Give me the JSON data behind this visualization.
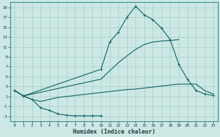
{
  "xlabel": "Humidex (Indice chaleur)",
  "background_color": "#cce8e4",
  "grid_color": "#aacfcb",
  "line_color": "#1a6b6b",
  "xlim": [
    -0.5,
    23.5
  ],
  "ylim": [
    -4,
    20
  ],
  "xticks": [
    0,
    1,
    2,
    3,
    4,
    5,
    6,
    7,
    8,
    9,
    10,
    11,
    12,
    13,
    14,
    15,
    16,
    17,
    18,
    19,
    20,
    21,
    22,
    23
  ],
  "yticks": [
    -3,
    -1,
    1,
    3,
    5,
    7,
    9,
    11,
    13,
    15,
    17,
    19
  ],
  "line1_x": [
    0,
    1,
    2,
    3,
    4,
    5,
    6,
    7,
    8,
    9,
    10
  ],
  "line1_y": [
    2.2,
    1.1,
    0.4,
    -1.3,
    -1.8,
    -2.5,
    -2.8,
    -2.9,
    -2.9,
    -2.9,
    -2.9
  ],
  "line2_x": [
    0,
    1,
    10,
    11,
    12,
    13,
    14,
    15,
    16,
    17,
    18,
    19
  ],
  "line2_y": [
    2.2,
    1.1,
    4.5,
    6.2,
    7.8,
    9.2,
    10.5,
    11.5,
    12.0,
    12.2,
    12.3,
    12.5
  ],
  "line3_x": [
    0,
    1,
    10,
    11,
    12,
    13,
    14,
    15,
    16,
    17,
    18,
    19,
    20,
    21,
    22,
    23
  ],
  "line3_y": [
    2.2,
    1.1,
    6.5,
    12.0,
    14.0,
    17.0,
    19.2,
    17.5,
    16.5,
    14.8,
    12.5,
    7.5,
    4.5,
    2.2,
    1.5,
    1.2
  ],
  "line4_x": [
    0,
    1,
    2,
    3,
    4,
    5,
    6,
    7,
    8,
    9,
    10,
    11,
    12,
    13,
    14,
    15,
    16,
    17,
    18,
    19,
    20,
    21,
    22,
    23
  ],
  "line4_y": [
    2.2,
    1.1,
    0.4,
    0.0,
    0.4,
    0.8,
    1.0,
    1.2,
    1.4,
    1.6,
    1.8,
    2.0,
    2.2,
    2.4,
    2.5,
    2.7,
    2.9,
    3.1,
    3.3,
    3.5,
    3.5,
    3.5,
    2.2,
    1.5
  ]
}
